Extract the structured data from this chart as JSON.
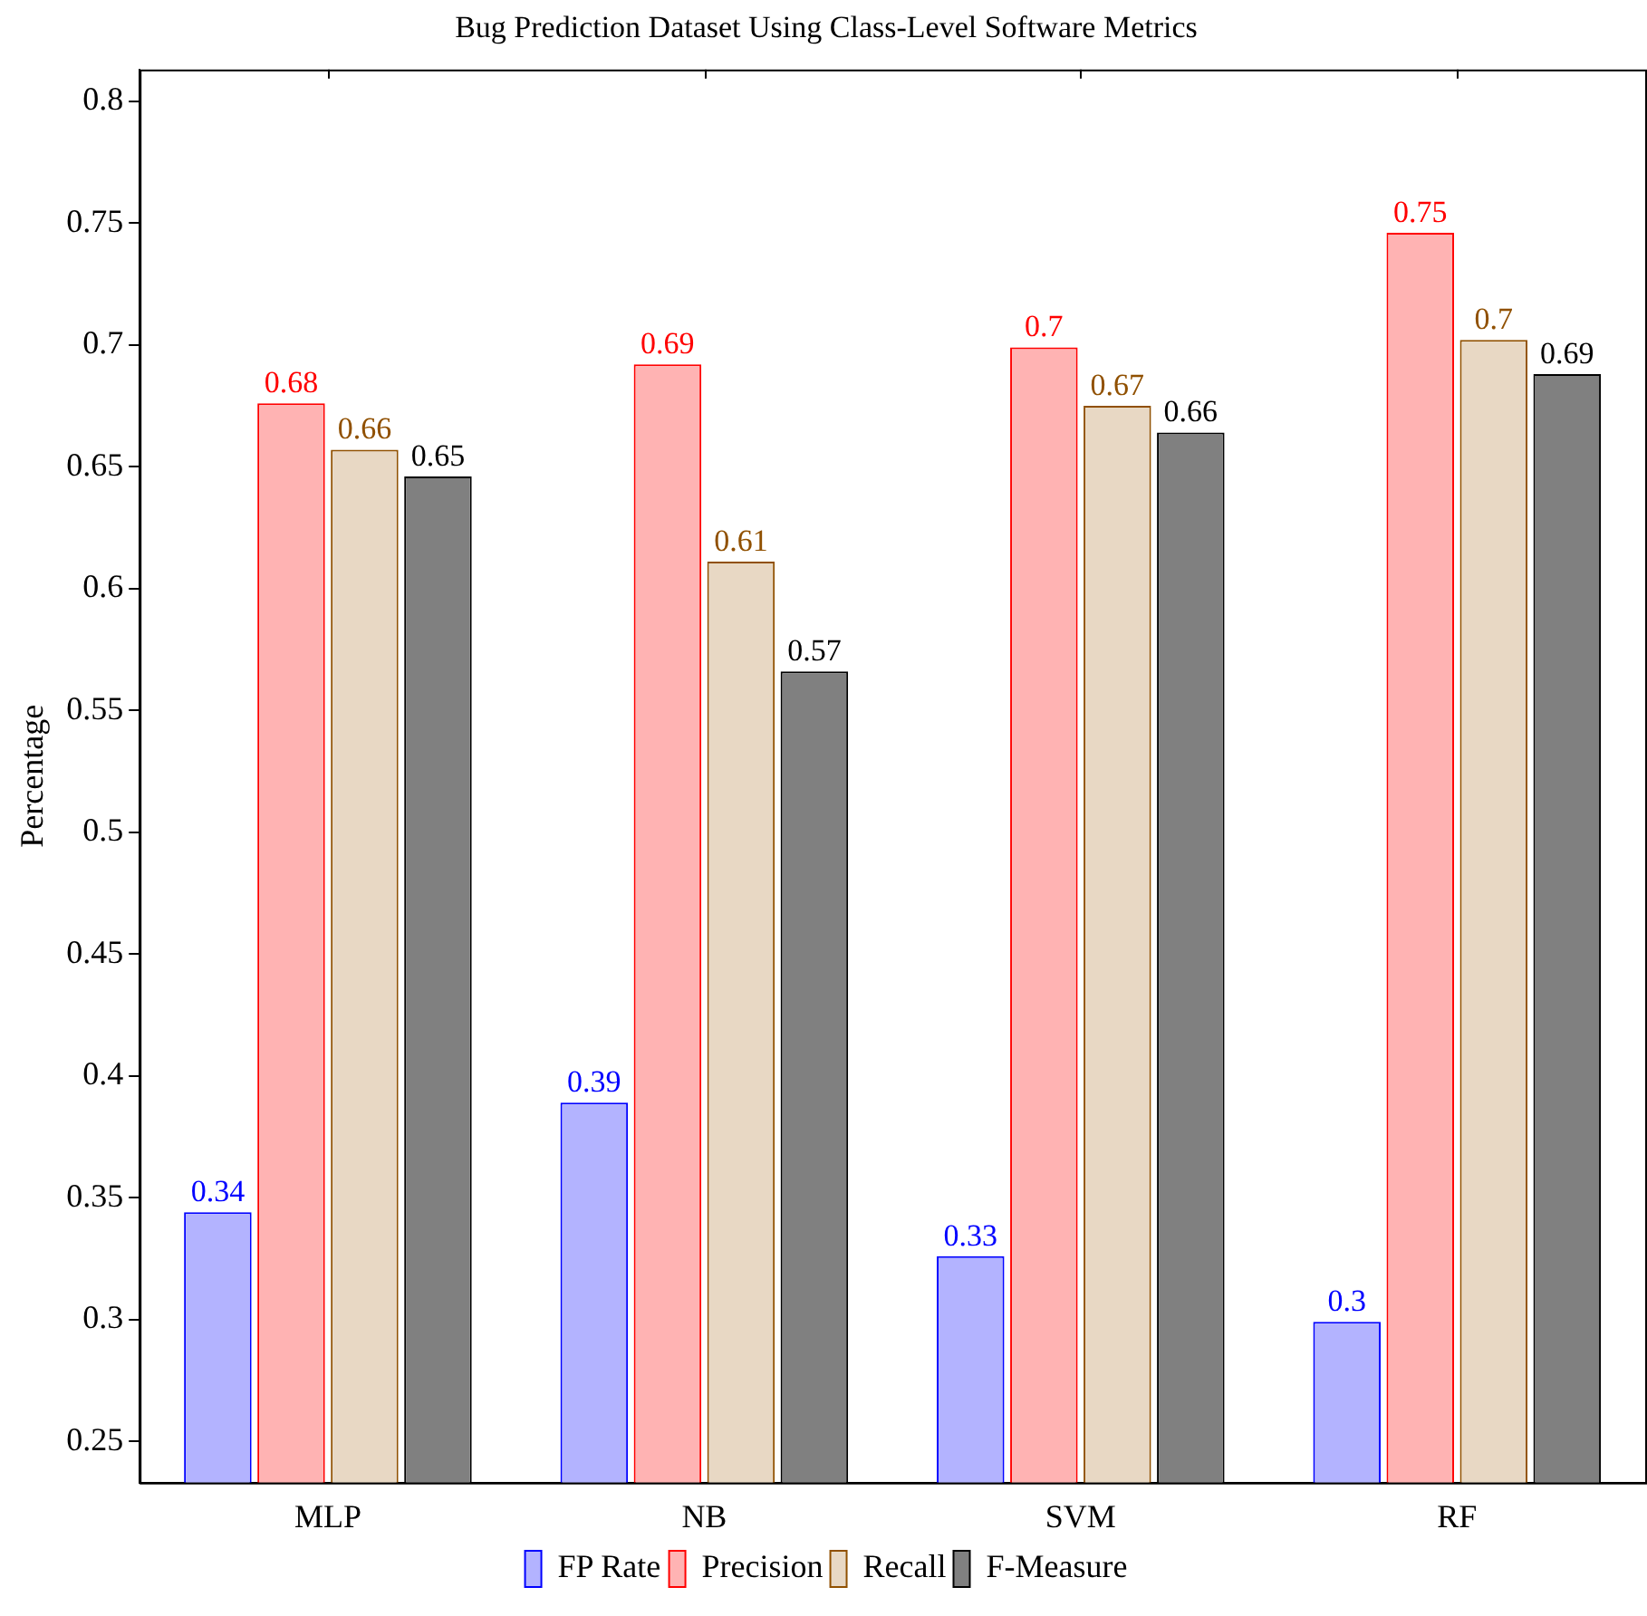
{
  "chart_data": {
    "type": "bar",
    "title": "Bug Prediction Dataset Using Class-Level Software Metrics",
    "ylabel": "Percentage",
    "categories": [
      "MLP",
      "NB",
      "SVM",
      "RF"
    ],
    "series": [
      {
        "name": "FP Rate",
        "color": "#b3b3ff",
        "values": [
          0.344,
          0.389,
          0.326,
          0.299
        ],
        "value_labels": [
          "0.34",
          "0.39",
          "0.33",
          "0.3"
        ]
      },
      {
        "name": "Precision",
        "color": "#ffb3b3",
        "values": [
          0.676,
          0.692,
          0.699,
          0.746
        ],
        "value_labels": [
          "0.68",
          "0.69",
          "0.7",
          "0.75"
        ]
      },
      {
        "name": "Recall",
        "color": "#e8d8c4",
        "values": [
          0.657,
          0.611,
          0.675,
          0.702
        ],
        "value_labels": [
          "0.66",
          "0.61",
          "0.67",
          "0.7"
        ]
      },
      {
        "name": "F-Measure",
        "color": "#808080",
        "values": [
          0.646,
          0.566,
          0.664,
          0.688
        ],
        "value_labels": [
          "0.65",
          "0.57",
          "0.66",
          "0.69"
        ]
      }
    ],
    "ylim": [
      0.233,
      0.813
    ],
    "yticks": [
      0.25,
      0.3,
      0.35,
      0.4,
      0.45,
      0.5,
      0.55,
      0.6,
      0.65,
      0.7,
      0.75,
      0.8
    ],
    "grid": false,
    "legend": "bottom"
  }
}
